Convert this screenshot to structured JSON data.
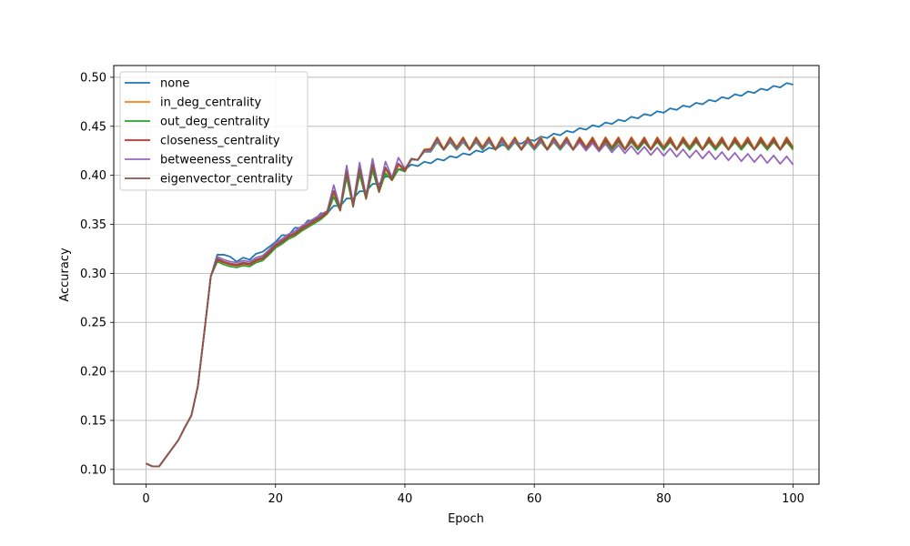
{
  "chart_data": {
    "type": "line",
    "xlabel": "Epoch",
    "ylabel": "Accuracy",
    "xlim": [
      -5,
      104
    ],
    "ylim": [
      0.085,
      0.512
    ],
    "xticks": [
      0,
      20,
      40,
      60,
      80,
      100
    ],
    "yticks": [
      0.1,
      0.15,
      0.2,
      0.25,
      0.3,
      0.35,
      0.4,
      0.45,
      0.5
    ],
    "grid": true,
    "legend_position": "top-left",
    "series": [
      {
        "name": "none",
        "color": "#1f77b4"
      },
      {
        "name": "in_deg_centrality",
        "color": "#ff7f0e"
      },
      {
        "name": "out_deg_centrality",
        "color": "#2ca02c"
      },
      {
        "name": "closeness_centrality",
        "color": "#d62728"
      },
      {
        "name": "betweeness_centrality",
        "color": "#9467bd"
      },
      {
        "name": "eigenvector_centrality",
        "color": "#8c564b"
      }
    ]
  }
}
